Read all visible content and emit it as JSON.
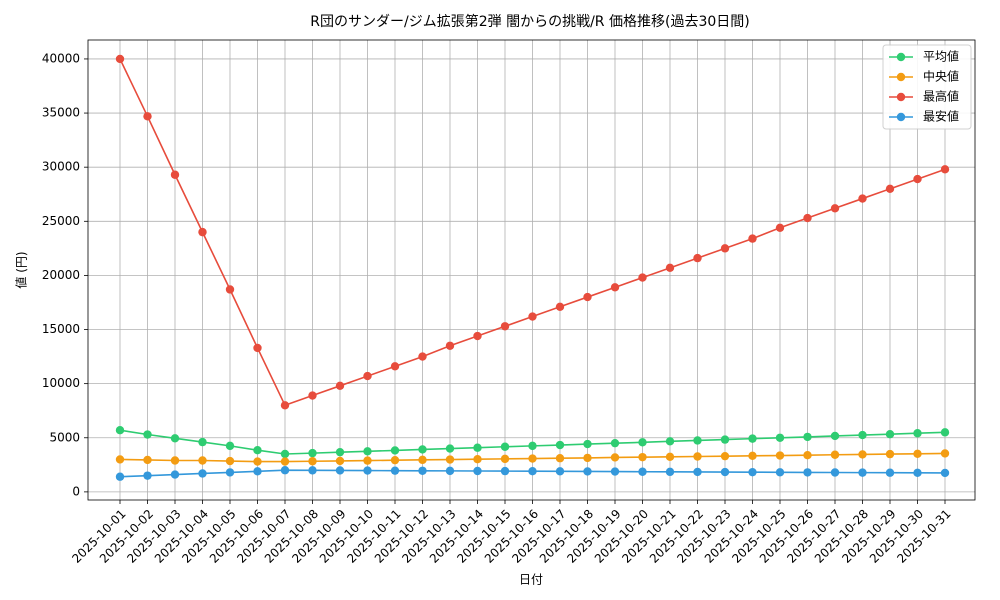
{
  "chart_data": {
    "type": "line",
    "title": "R団のサンダー/ジム拡張第2弾 闇からの挑戦/R 価格推移(過去30日間)",
    "x_label": "日付",
    "y_label": "値 (円)",
    "categories": [
      "2025-10-01",
      "2025-10-02",
      "2025-10-03",
      "2025-10-04",
      "2025-10-05",
      "2025-10-06",
      "2025-10-07",
      "2025-10-08",
      "2025-10-09",
      "2025-10-10",
      "2025-10-11",
      "2025-10-12",
      "2025-10-13",
      "2025-10-14",
      "2025-10-15",
      "2025-10-16",
      "2025-10-17",
      "2025-10-18",
      "2025-10-19",
      "2025-10-20",
      "2025-10-21",
      "2025-10-22",
      "2025-10-23",
      "2025-10-24",
      "2025-10-25",
      "2025-10-26",
      "2025-10-27",
      "2025-10-28",
      "2025-10-29",
      "2025-10-30",
      "2025-10-31"
    ],
    "series": [
      {
        "name": "平均値",
        "color": "#2ecc71",
        "values": [
          5700,
          5300,
          4950,
          4600,
          4250,
          3850,
          3500,
          3580,
          3670,
          3750,
          3830,
          3920,
          4000,
          4080,
          4170,
          4250,
          4330,
          4420,
          4500,
          4580,
          4670,
          4750,
          4830,
          4920,
          5000,
          5080,
          5170,
          5250,
          5330,
          5420,
          5500
        ]
      },
      {
        "name": "中央値",
        "color": "#f39c12",
        "values": [
          3000,
          2950,
          2900,
          2900,
          2850,
          2800,
          2800,
          2830,
          2860,
          2890,
          2930,
          2960,
          2990,
          3020,
          3050,
          3080,
          3110,
          3140,
          3180,
          3210,
          3240,
          3270,
          3300,
          3330,
          3360,
          3390,
          3430,
          3460,
          3490,
          3520,
          3550
        ]
      },
      {
        "name": "最高値",
        "color": "#e74c3c",
        "values": [
          40000,
          34700,
          29300,
          24000,
          18700,
          13300,
          8000,
          8900,
          9800,
          10700,
          11600,
          12500,
          13500,
          14400,
          15300,
          16200,
          17100,
          18000,
          18900,
          19800,
          20700,
          21600,
          22500,
          23400,
          24400,
          25300,
          26200,
          27100,
          28000,
          28900,
          29800
        ]
      },
      {
        "name": "最安値",
        "color": "#3498db",
        "values": [
          1400,
          1500,
          1600,
          1700,
          1800,
          1900,
          2000,
          1990,
          1980,
          1970,
          1960,
          1950,
          1940,
          1930,
          1920,
          1910,
          1900,
          1890,
          1880,
          1860,
          1850,
          1840,
          1830,
          1820,
          1810,
          1800,
          1790,
          1780,
          1770,
          1760,
          1750
        ]
      }
    ],
    "ylim": [
      -750,
      41750
    ],
    "yticks": [
      0,
      5000,
      10000,
      15000,
      20000,
      25000,
      30000,
      35000,
      40000
    ],
    "grid": true,
    "legend": "upper right"
  }
}
